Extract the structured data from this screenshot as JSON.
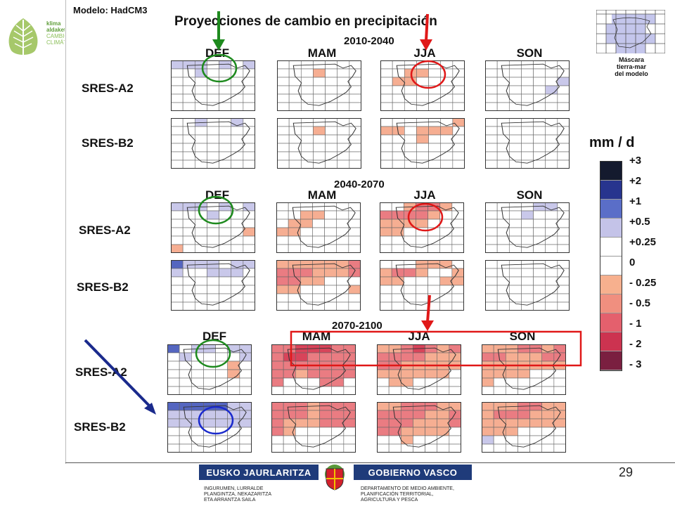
{
  "logo": {
    "lines": [
      "klima",
      "aldaketa",
      "CAMBIO",
      "CLIMÁTICO"
    ]
  },
  "figure": {
    "model_label": "Modelo: HadCM3",
    "title": "Proyecciones de cambio en precipitación",
    "periods": [
      "2010-2040",
      "2040-2070",
      "2070-2100"
    ],
    "seasons": [
      "DEF",
      "MAM",
      "JJA",
      "SON"
    ],
    "scenarios": [
      "SRES-A2",
      "SRES-B2"
    ],
    "mask_caption": [
      "Máscara",
      "tierra-mar",
      "del modelo"
    ]
  },
  "legend": {
    "unit": "mm / d",
    "labels": [
      "+3",
      "+2",
      "+1",
      "+0.5",
      "+0.25",
      "0",
      "- 0.25",
      "- 0.5",
      "- 1",
      "- 2",
      "- 3"
    ],
    "colors": [
      "#141a2e",
      "#27348e",
      "#5a6ec8",
      "#c4c3e8",
      "#ffffff",
      "#ffffff",
      "#f7b08e",
      "#f08f7f",
      "#e4606d",
      "#cc3350",
      "#7a1f40"
    ]
  },
  "maps": [
    {
      "period": 0,
      "row": 0,
      "col": 0,
      "cells": "bbbwbwbwwbwwwwwwwwwwwwwwwwwwwwwwwwwwwwwwww"
    },
    {
      "period": 0,
      "row": 0,
      "col": 1,
      "cells": "wwwwwwwwwwpwwwwwwwwwwwwwwwwwwwwwwwwwwwwwww"
    },
    {
      "period": 0,
      "row": 0,
      "col": 2,
      "cells": "wwwwwwwwwppwwwwppwwwwwwwwwwwwwwwwwwwwwwwww"
    },
    {
      "period": 0,
      "row": 0,
      "col": 3,
      "cells": "wwwwwwwwwwwwwwwwwwwwbwwwwwbwwwwwwwwwwwwwww"
    },
    {
      "period": 0,
      "row": 1,
      "col": 0,
      "cells": "wwbwwbwwwwwwwwwwwwwwwwwwwwwwwwwwwwwwwwwwww"
    },
    {
      "period": 0,
      "row": 1,
      "col": 1,
      "cells": "wwwwwwwwwwpwwwwwwwwwwwwwwwwwwwwwwwwwwwwwww"
    },
    {
      "period": 0,
      "row": 1,
      "col": 2,
      "cells": "wwwwwwpppwpppwwwwpwwwwwwwwwwwwwwwwwwwwwwww"
    },
    {
      "period": 0,
      "row": 1,
      "col": 3,
      "cells": "wwwwwwwwwwwwwwwwwwwwwwwwwwwwwwwwwwwwwwwwww"
    },
    {
      "period": 1,
      "row": 0,
      "col": 0,
      "cells": "bbbwbwbwwwbwwwwwwwwwwwwwwwwpwwwwwwwpwwwwww"
    },
    {
      "period": 1,
      "row": 0,
      "col": 1,
      "cells": "wwwwwwwwwppwwwwppwwwwppwwwwwwwwwwwwwwwwwww"
    },
    {
      "period": 1,
      "row": 0,
      "col": 2,
      "cells": "wwprrpwrrrrpwwppppwwwppwwwwwwwwwwwwwwwwwww"
    },
    {
      "period": 1,
      "row": 0,
      "col": 3,
      "cells": "wwwwbbwwwwbwwwwwwwwwwwwwwwwwwwwwwwwwwwwwww"
    },
    {
      "period": 1,
      "row": 1,
      "col": 0,
      "cells": "BbbbwbbbwwbbbwwwwwwwwwwwwwwwwwwwwwwwwwwwWW"
    },
    {
      "period": 1,
      "row": 1,
      "col": 1,
      "cells": "pppppprrrrppprrrppwwwppwwwwpwwwwwwwwwwwwww"
    },
    {
      "period": 1,
      "row": 1,
      "col": 2,
      "cells": "wwwpppwprrpwwpppwwwppwwwwwwwwwwwwwwwwwwwww"
    },
    {
      "period": 1,
      "row": 1,
      "col": 3,
      "cells": "wwwwwwwwwwwwwwwwwwwwwwwwwwwwwwwwwwwwwwwwww"
    },
    {
      "period": 2,
      "row": 0,
      "col": 0,
      "cells": "Bwbbwbbwbwwwwbwwwwwpwwwwwwpwwwwwwwwwwwwwww"
    },
    {
      "period": 2,
      "row": 0,
      "col": 1,
      "cells": "rrRRRrrrRRrrrrrrrrrrrrrprrrrrwwwrrwwwwwwwww"
    },
    {
      "period": 2,
      "row": 0,
      "col": 2,
      "cells": "pprRrprrrrrppprrpppppppppppwwppwwwwwwwwwwww"
    },
    {
      "period": 2,
      "row": 0,
      "col": 3,
      "cells": "ppprrprrrppprrpppppppppppwwwpwwwwwwwwwwwww"
    },
    {
      "period": 2,
      "row": 1,
      "col": 0,
      "cells": "BBBBBbbbbbbbbbbbbbbbbwwwwwwwwwwwwwwwwwwwww"
    },
    {
      "period": 2,
      "row": 1,
      "col": 1,
      "cells": "rrrprrrrrrprrrrppprrrrpwwwwwwwwwwwwwwwwwww"
    },
    {
      "period": 2,
      "row": 1,
      "col": 2,
      "cells": "pprrrpprrrrpprrrrppprrrppppwwwpwwwwwwwwwww"
    },
    {
      "period": 2,
      "row": 1,
      "col": 3,
      "cells": "ppprrppprrrpppppppppppppwwwwbwwwwwwwwwwwww"
    }
  ],
  "footer": {
    "left_banner": "EUSKO JAURLARITZA",
    "right_banner": "GOBIERNO VASCO",
    "left_lines": [
      "INGURUMEN, LURRALDE",
      "PLANGINTZA, NEKAZARITZA",
      "ETA ARRANTZA SAILA"
    ],
    "right_lines": [
      "DEPARTAMENTO DE MEDIO AMBIENTE,",
      "PLANIFICACIÓN TERRITORIAL,",
      "AGRICULTURA Y PESCA"
    ],
    "page_number": "29"
  }
}
